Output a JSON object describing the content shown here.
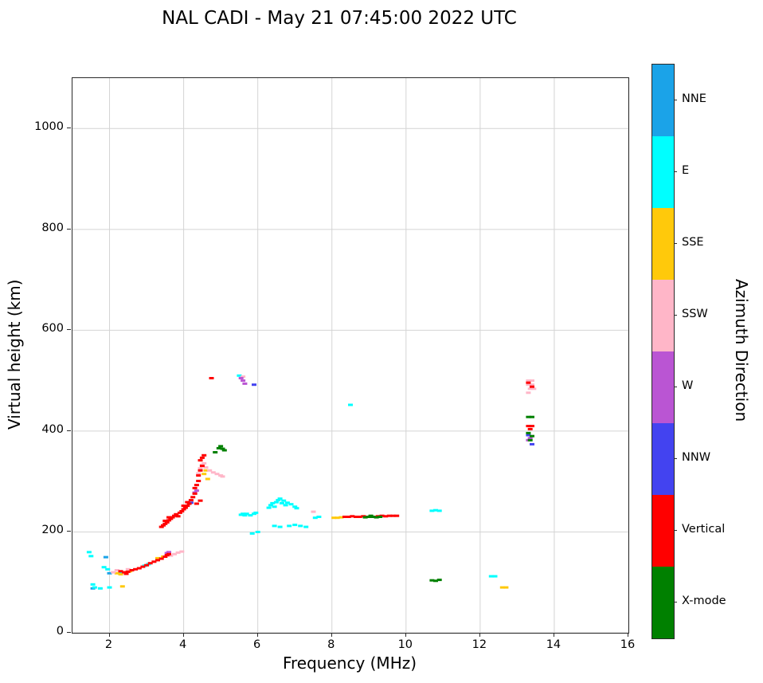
{
  "chart_data": {
    "type": "scatter",
    "title": "NAL CADI - May 21 07:45:00 2022 UTC",
    "xlabel": "Frequency (MHz)",
    "ylabel": "Virtual height (km)",
    "xlim": [
      1,
      16
    ],
    "ylim": [
      0,
      1100
    ],
    "xticks": [
      2,
      4,
      6,
      8,
      10,
      12,
      14,
      16
    ],
    "yticks": [
      0,
      200,
      400,
      600,
      800,
      1000
    ],
    "grid": true,
    "grid_color": "#d4d4d4",
    "marker": "rect",
    "marker_size": [
      6,
      3
    ],
    "colorbar": {
      "label": "Azimuth Direction",
      "entries_top_to_bottom": [
        "NNE",
        "E",
        "SSE",
        "SSW",
        "W",
        "NNW",
        "Vertical",
        "X-mode"
      ]
    },
    "series": [
      {
        "name": "NNE",
        "color": "#1BA3E8",
        "points": [
          [
            1.9,
            150
          ],
          [
            1.55,
            88
          ],
          [
            2.0,
            118
          ]
        ]
      },
      {
        "name": "E",
        "color": "#00FFFF",
        "points": [
          [
            1.45,
            160
          ],
          [
            1.5,
            152
          ],
          [
            1.55,
            96
          ],
          [
            1.6,
            90
          ],
          [
            1.75,
            88
          ],
          [
            1.85,
            130
          ],
          [
            1.95,
            126
          ],
          [
            2.0,
            90
          ],
          [
            2.3,
            120
          ],
          [
            2.95,
            133
          ],
          [
            3.05,
            136
          ],
          [
            5.5,
            510
          ],
          [
            5.55,
            234
          ],
          [
            5.6,
            236
          ],
          [
            5.65,
            233
          ],
          [
            5.7,
            236
          ],
          [
            5.8,
            233
          ],
          [
            5.9,
            236
          ],
          [
            5.95,
            238
          ],
          [
            5.85,
            197
          ],
          [
            6.0,
            200
          ],
          [
            6.3,
            248
          ],
          [
            6.35,
            253
          ],
          [
            6.4,
            257
          ],
          [
            6.45,
            250
          ],
          [
            6.5,
            259
          ],
          [
            6.55,
            263
          ],
          [
            6.6,
            266
          ],
          [
            6.65,
            257
          ],
          [
            6.7,
            262
          ],
          [
            6.75,
            253
          ],
          [
            6.8,
            258
          ],
          [
            6.9,
            255
          ],
          [
            7.0,
            250
          ],
          [
            7.05,
            247
          ],
          [
            6.45,
            212
          ],
          [
            6.6,
            210
          ],
          [
            6.85,
            212
          ],
          [
            7.0,
            214
          ],
          [
            7.15,
            212
          ],
          [
            7.3,
            210
          ],
          [
            7.55,
            228
          ],
          [
            7.65,
            230
          ],
          [
            8.5,
            452
          ],
          [
            10.7,
            242
          ],
          [
            10.8,
            243
          ],
          [
            10.9,
            242
          ],
          [
            12.3,
            112
          ],
          [
            12.4,
            112
          ]
        ]
      },
      {
        "name": "SSE",
        "color": "#FFC90B",
        "points": [
          [
            2.2,
            118
          ],
          [
            2.3,
            116
          ],
          [
            2.45,
            120
          ],
          [
            2.35,
            92
          ],
          [
            2.55,
            122
          ],
          [
            3.3,
            148
          ],
          [
            3.45,
            151
          ],
          [
            3.55,
            154
          ],
          [
            4.55,
            315
          ],
          [
            4.6,
            322
          ],
          [
            4.65,
            305
          ],
          [
            8.05,
            228
          ],
          [
            8.15,
            228
          ],
          [
            8.25,
            229
          ],
          [
            12.6,
            90
          ],
          [
            12.7,
            90
          ]
        ]
      },
      {
        "name": "SSW",
        "color": "#FFB6C8",
        "points": [
          [
            2.1,
            120
          ],
          [
            2.2,
            124
          ],
          [
            2.5,
            126
          ],
          [
            3.65,
            153
          ],
          [
            3.75,
            156
          ],
          [
            3.85,
            159
          ],
          [
            3.95,
            161
          ],
          [
            4.4,
            316
          ],
          [
            4.45,
            326
          ],
          [
            4.5,
            333
          ],
          [
            4.55,
            336
          ],
          [
            4.6,
            328
          ],
          [
            4.7,
            322
          ],
          [
            4.8,
            318
          ],
          [
            4.9,
            315
          ],
          [
            5.0,
            312
          ],
          [
            5.05,
            310
          ],
          [
            7.5,
            240
          ],
          [
            5.6,
            508
          ],
          [
            13.3,
            500
          ],
          [
            13.4,
            500
          ],
          [
            13.3,
            492
          ],
          [
            13.4,
            492
          ],
          [
            13.35,
            484
          ],
          [
            13.45,
            484
          ],
          [
            13.3,
            476
          ]
        ]
      },
      {
        "name": "W",
        "color": "#BA55D3",
        "points": [
          [
            3.55,
            158
          ],
          [
            3.6,
            160
          ],
          [
            4.3,
            278
          ],
          [
            4.35,
            282
          ],
          [
            5.55,
            505
          ],
          [
            5.6,
            500
          ],
          [
            5.65,
            494
          ],
          [
            13.35,
            386
          ],
          [
            13.3,
            382
          ]
        ]
      },
      {
        "name": "NNW",
        "color": "#4343F0",
        "points": [
          [
            4.2,
            258
          ],
          [
            5.9,
            492
          ],
          [
            13.3,
            392
          ],
          [
            13.4,
            374
          ]
        ]
      },
      {
        "name": "Vertical",
        "color": "#FF0000",
        "points": [
          [
            2.3,
            122
          ],
          [
            2.4,
            120
          ],
          [
            2.45,
            117
          ],
          [
            2.5,
            121
          ],
          [
            2.6,
            124
          ],
          [
            2.7,
            126
          ],
          [
            2.8,
            128
          ],
          [
            2.9,
            131
          ],
          [
            3.0,
            134
          ],
          [
            3.1,
            138
          ],
          [
            3.2,
            141
          ],
          [
            3.3,
            144
          ],
          [
            3.4,
            147
          ],
          [
            3.5,
            151
          ],
          [
            3.55,
            154
          ],
          [
            3.6,
            156
          ],
          [
            3.4,
            210
          ],
          [
            3.45,
            213
          ],
          [
            3.5,
            216
          ],
          [
            3.5,
            222
          ],
          [
            3.55,
            219
          ],
          [
            3.6,
            223
          ],
          [
            3.6,
            229
          ],
          [
            3.65,
            226
          ],
          [
            3.7,
            229
          ],
          [
            3.75,
            232
          ],
          [
            3.8,
            235
          ],
          [
            3.85,
            231
          ],
          [
            3.9,
            238
          ],
          [
            3.95,
            241
          ],
          [
            4.0,
            245
          ],
          [
            4.0,
            252
          ],
          [
            4.05,
            248
          ],
          [
            4.1,
            252
          ],
          [
            4.1,
            259
          ],
          [
            4.15,
            256
          ],
          [
            4.2,
            263
          ],
          [
            4.25,
            269
          ],
          [
            4.3,
            276
          ],
          [
            4.3,
            287
          ],
          [
            4.35,
            293
          ],
          [
            4.35,
            256
          ],
          [
            4.4,
            301
          ],
          [
            4.4,
            312
          ],
          [
            4.45,
            322
          ],
          [
            4.45,
            342
          ],
          [
            4.5,
            331
          ],
          [
            4.5,
            347
          ],
          [
            4.55,
            352
          ],
          [
            4.45,
            262
          ],
          [
            4.75,
            505
          ],
          [
            8.35,
            230
          ],
          [
            8.45,
            230
          ],
          [
            8.55,
            231
          ],
          [
            8.65,
            230
          ],
          [
            8.75,
            230
          ],
          [
            8.85,
            231
          ],
          [
            8.95,
            230
          ],
          [
            9.05,
            231
          ],
          [
            9.15,
            230
          ],
          [
            9.25,
            231
          ],
          [
            9.35,
            232
          ],
          [
            9.45,
            231
          ],
          [
            9.55,
            232
          ],
          [
            9.65,
            232
          ],
          [
            9.75,
            232
          ],
          [
            13.3,
            410
          ],
          [
            13.4,
            410
          ],
          [
            13.35,
            404
          ],
          [
            13.3,
            496
          ],
          [
            13.4,
            488
          ]
        ]
      },
      {
        "name": "X-mode",
        "color": "#008000",
        "points": [
          [
            4.85,
            358
          ],
          [
            4.95,
            366
          ],
          [
            5.0,
            370
          ],
          [
            5.05,
            365
          ],
          [
            5.1,
            362
          ],
          [
            8.9,
            229
          ],
          [
            9.0,
            230
          ],
          [
            9.1,
            230
          ],
          [
            9.2,
            229
          ],
          [
            9.3,
            230
          ],
          [
            9.05,
            232
          ],
          [
            10.7,
            104
          ],
          [
            10.8,
            103
          ],
          [
            10.9,
            105
          ],
          [
            13.3,
            428
          ],
          [
            13.4,
            428
          ],
          [
            13.3,
            396
          ],
          [
            13.4,
            390
          ],
          [
            13.35,
            382
          ]
        ]
      }
    ]
  }
}
